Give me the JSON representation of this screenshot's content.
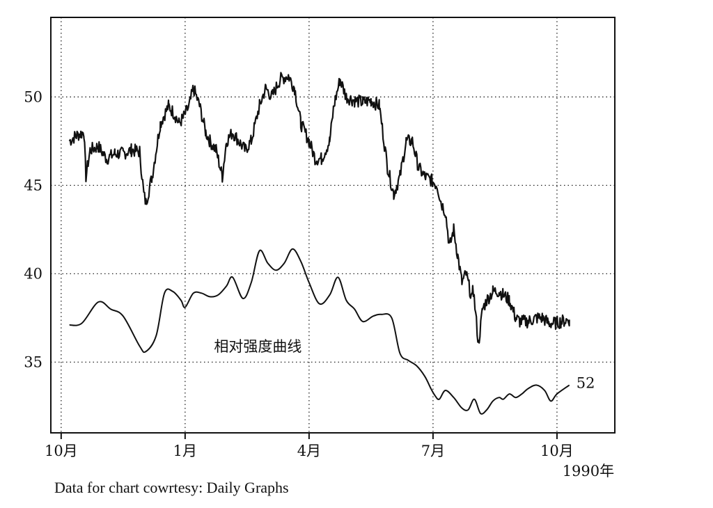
{
  "chart_data": {
    "type": "line",
    "title": "",
    "xlabel": "",
    "ylabel": "",
    "ylim": [
      31,
      54.5
    ],
    "y_ticks": [
      35,
      40,
      45,
      50
    ],
    "x_ticks": [
      {
        "label": "10月",
        "month": 0
      },
      {
        "label": "1月",
        "month": 3
      },
      {
        "label": "4月",
        "month": 6
      },
      {
        "label": "7月",
        "month": 9
      },
      {
        "label": "10月",
        "month": 12
      }
    ],
    "year_label": "1990年",
    "xlim": [
      -0.25,
      13.4
    ],
    "grid": true,
    "annotations": {
      "rs_curve_label": "相对强度曲线",
      "rs_end_value": "52"
    },
    "series": [
      {
        "key": "price",
        "style": "noisy",
        "x": [
          0.2,
          0.35,
          0.55,
          0.6,
          0.7,
          0.9,
          1.1,
          1.3,
          1.5,
          1.7,
          1.9,
          2.0,
          2.05,
          2.2,
          2.4,
          2.6,
          2.75,
          2.85,
          2.95,
          3.1,
          3.2,
          3.35,
          3.5,
          3.6,
          3.75,
          3.9,
          4.0,
          4.15,
          4.3,
          4.45,
          4.6,
          4.8,
          4.95,
          5.1,
          5.3,
          5.5,
          5.65,
          5.8,
          6.0,
          6.15,
          6.3,
          6.5,
          6.6,
          6.75,
          6.9,
          7.1,
          7.3,
          7.5,
          7.7,
          7.9,
          8.05,
          8.2,
          8.35,
          8.5,
          8.65,
          8.8,
          8.95,
          9.1,
          9.2,
          9.3,
          9.4,
          9.5,
          9.6,
          9.7,
          9.8,
          9.95,
          9.96,
          10.1,
          10.2,
          10.3,
          10.45,
          10.6,
          10.7,
          10.85,
          11.0,
          11.1,
          11.3,
          11.5,
          11.65,
          11.8,
          11.95,
          12.1,
          12.3
        ],
        "values": [
          47.5,
          47.8,
          48.0,
          45.5,
          47.0,
          47.2,
          46.5,
          46.8,
          46.8,
          47.0,
          46.9,
          44.5,
          44.0,
          45.5,
          48.5,
          49.5,
          49.0,
          48.5,
          48.8,
          49.5,
          50.5,
          49.5,
          48.0,
          47.5,
          47.0,
          45.5,
          47.5,
          48.0,
          47.5,
          47.0,
          47.5,
          49.5,
          50.5,
          50.0,
          51.0,
          51.2,
          50.5,
          48.5,
          47.5,
          46.5,
          46.5,
          47.5,
          49.5,
          51.0,
          50.0,
          49.8,
          49.7,
          49.8,
          49.5,
          46.0,
          44.5,
          45.5,
          47.5,
          47.5,
          46.0,
          45.5,
          45.3,
          45.0,
          44.0,
          43.5,
          41.5,
          42.5,
          41.0,
          39.5,
          40.0,
          38.5,
          39.5,
          36.0,
          38.0,
          38.5,
          39.0,
          39.0,
          38.8,
          38.5,
          37.5,
          37.3,
          37.3,
          37.5,
          37.5,
          37.2,
          37.2,
          37.3,
          37.4
        ]
      },
      {
        "key": "relative_strength",
        "style": "smooth",
        "x": [
          0.2,
          0.5,
          0.9,
          1.2,
          1.5,
          1.9,
          2.05,
          2.3,
          2.5,
          2.7,
          2.9,
          3.0,
          3.2,
          3.4,
          3.6,
          3.8,
          4.0,
          4.15,
          4.4,
          4.6,
          4.8,
          5.0,
          5.2,
          5.4,
          5.6,
          5.8,
          6.0,
          6.25,
          6.5,
          6.7,
          6.9,
          7.1,
          7.3,
          7.55,
          7.75,
          8.0,
          8.2,
          8.4,
          8.6,
          8.8,
          8.95,
          9.05,
          9.15,
          9.3,
          9.5,
          9.7,
          9.85,
          10.0,
          10.15,
          10.3,
          10.45,
          10.6,
          10.7,
          10.85,
          11.0,
          11.15,
          11.3,
          11.5,
          11.7,
          11.85,
          12.0,
          12.3
        ],
        "values": [
          37.1,
          37.2,
          38.4,
          38.0,
          37.6,
          35.9,
          35.6,
          36.5,
          38.9,
          39.0,
          38.5,
          38.1,
          38.9,
          38.9,
          38.7,
          38.8,
          39.3,
          39.8,
          38.6,
          39.5,
          41.3,
          40.6,
          40.2,
          40.6,
          41.4,
          40.7,
          39.5,
          38.3,
          38.8,
          39.8,
          38.5,
          38.0,
          37.3,
          37.6,
          37.7,
          37.5,
          35.5,
          35.1,
          34.8,
          34.2,
          33.5,
          33.1,
          32.9,
          33.4,
          33.0,
          32.4,
          32.3,
          32.9,
          32.1,
          32.3,
          32.8,
          33.0,
          32.9,
          33.2,
          33.0,
          33.2,
          33.5,
          33.7,
          33.4,
          32.8,
          33.2,
          33.7
        ]
      }
    ]
  },
  "footer": {
    "credit": "Data for chart cowrtesy: Daily Graphs"
  }
}
